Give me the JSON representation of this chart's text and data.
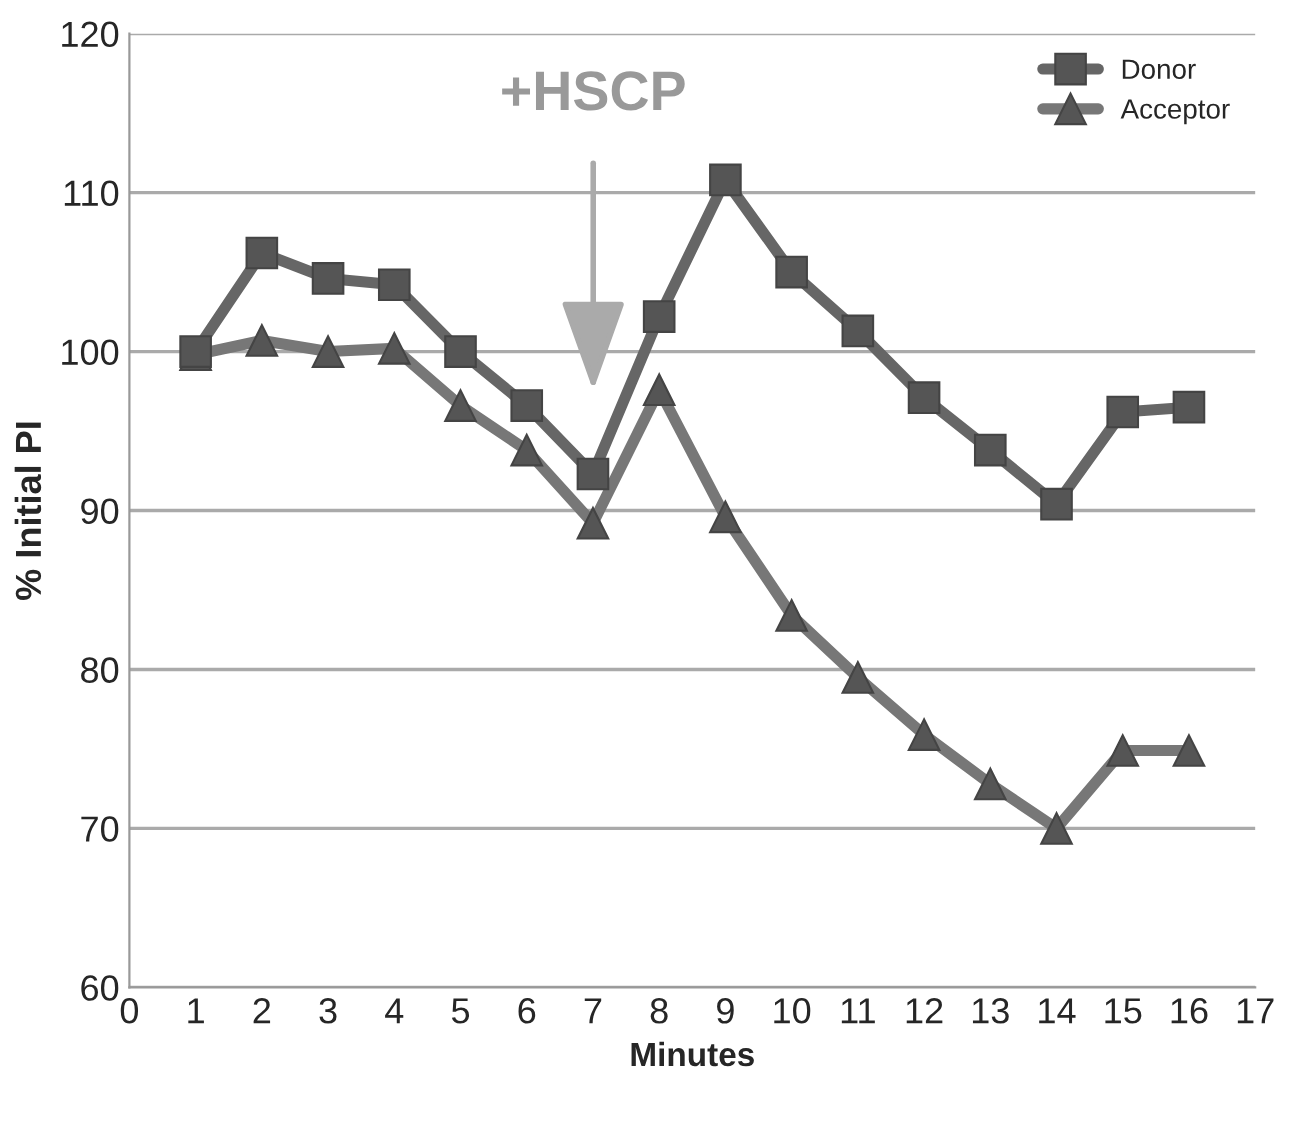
{
  "chart_data": {
    "type": "line",
    "xlabel": "Minutes",
    "ylabel": "% Initial PI",
    "x": [
      1,
      2,
      3,
      4,
      5,
      6,
      7,
      8,
      9,
      10,
      11,
      12,
      13,
      14,
      15,
      16
    ],
    "series": [
      {
        "name": "Donor",
        "color": "#666666",
        "marker": "square",
        "values": [
          100,
          106.2,
          104.6,
          104.2,
          100,
          96.6,
          92.3,
          102.2,
          110.8,
          105,
          101.3,
          97.1,
          93.8,
          90.4,
          96.2,
          96.5
        ]
      },
      {
        "name": "Acceptor",
        "color": "#777777",
        "marker": "triangle",
        "values": [
          99.8,
          100.7,
          100,
          100.2,
          96.6,
          93.8,
          89.2,
          97.6,
          89.6,
          83.4,
          79.5,
          75.9,
          72.8,
          70,
          74.9,
          74.9
        ]
      }
    ],
    "annotations": [
      "+HSCP"
    ],
    "xlim": [
      0,
      17
    ],
    "xticks": [
      0,
      1,
      2,
      3,
      4,
      5,
      6,
      7,
      8,
      9,
      10,
      11,
      12,
      13,
      14,
      15,
      16,
      17
    ],
    "ylim": [
      60,
      120
    ],
    "yticks": [
      60,
      70,
      80,
      90,
      100,
      110,
      120
    ],
    "grid": "y",
    "legend": "top right",
    "line_style": "solid"
  }
}
